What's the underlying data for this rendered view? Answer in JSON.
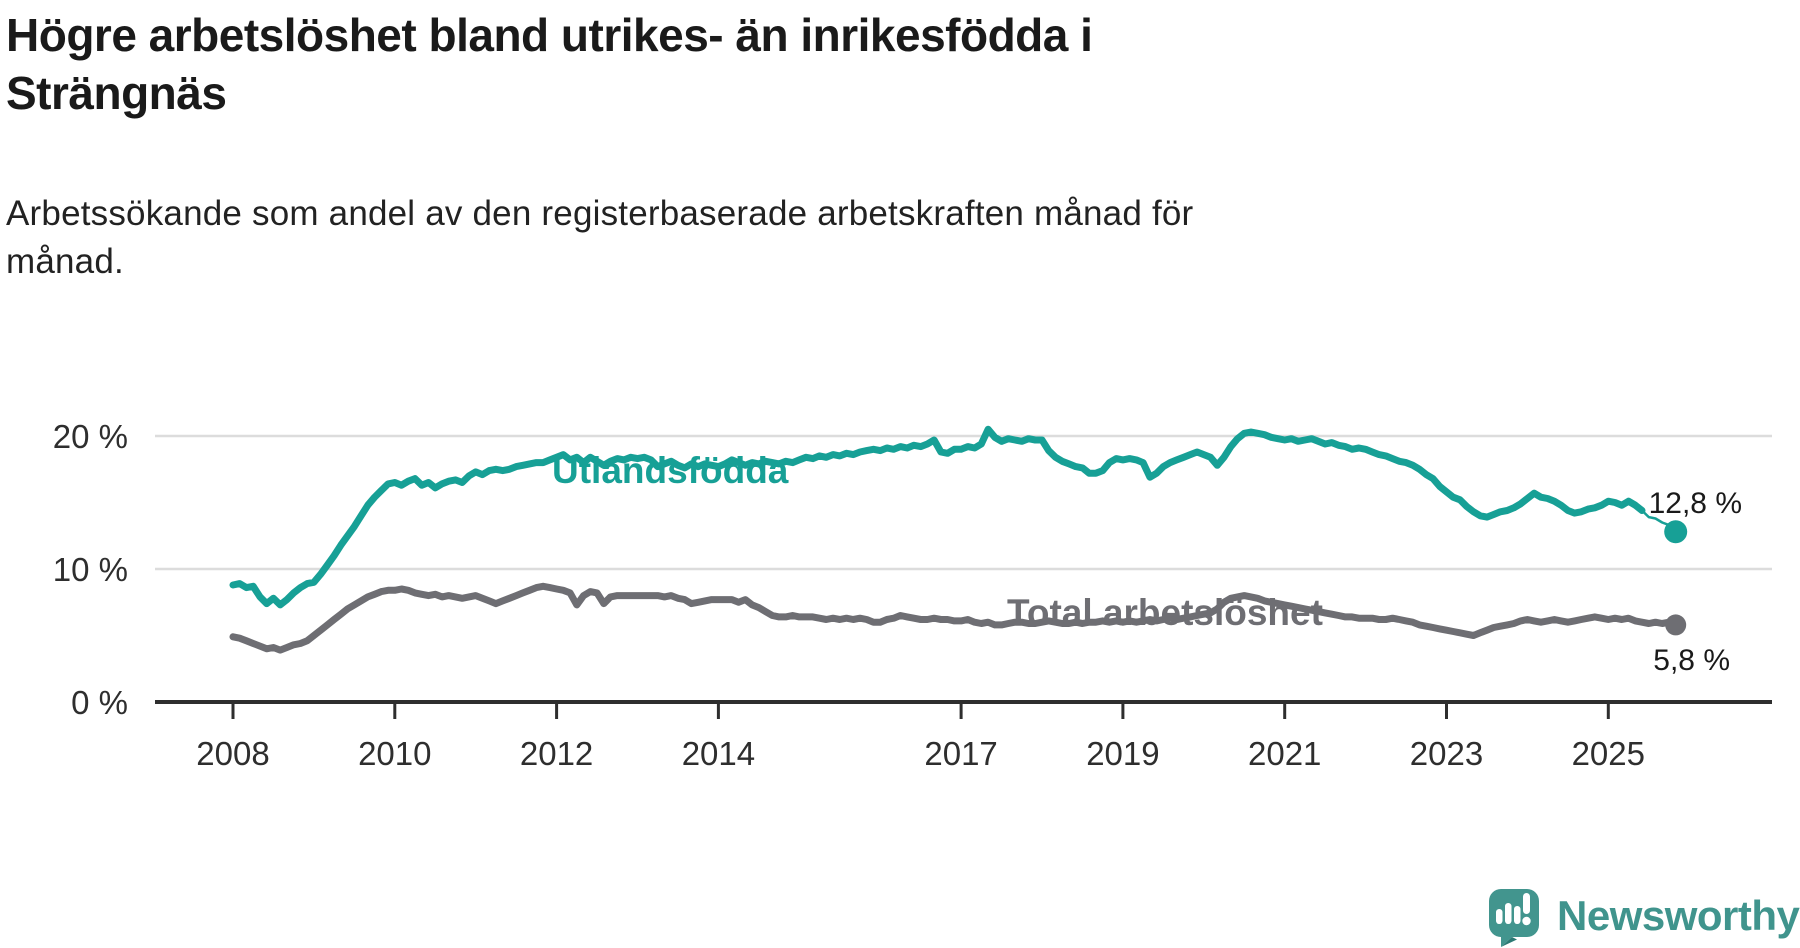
{
  "header": {
    "title": "Högre arbetslöshet bland utrikes- än inrikesfödda i\nSträngnäs",
    "subtitle": "Arbetssökande som andel av den registerbaserade arbetskraften månad för\nmånad."
  },
  "footer": {
    "brand": "Newsworthy",
    "brand_color": "#40948d",
    "logo_badge_color": "#42958e",
    "logo_badge_shade_color": "#2c7a74"
  },
  "palette": {
    "accent_teal": "#17a096",
    "series_gray": "#6e6e73",
    "gridline": "#dcdcdc",
    "axis": "#2e2e2e",
    "text_dark": "#1a1a1a"
  },
  "chart_data": {
    "type": "line",
    "title": "Högre arbetslöshet bland utrikes- än inrikesfödda i Strängnäs",
    "subtitle": "Arbetssökande som andel av den registerbaserade arbetskraften månad för månad.",
    "x_unit": "month",
    "x_start": "2008-01",
    "x_end": "2025-11",
    "ylim": [
      0,
      21.5
    ],
    "grid": "horizontal",
    "legend": "inline-labels",
    "x_ticks": [
      2008,
      2010,
      2012,
      2014,
      2017,
      2019,
      2021,
      2023,
      2025
    ],
    "y_ticks": [
      {
        "v": 0,
        "label": "0 %"
      },
      {
        "v": 10,
        "label": "10 %"
      },
      {
        "v": 20,
        "label": "20 %"
      }
    ],
    "series": [
      {
        "name": "utlandsfodda",
        "label": "Utlandsfödda",
        "color": "#17a096",
        "end_label": "12,8 %",
        "end_value": 12.8,
        "thin_from": 209,
        "values": [
          8.8,
          8.9,
          8.6,
          8.7,
          7.9,
          7.4,
          7.8,
          7.3,
          7.7,
          8.2,
          8.6,
          8.9,
          9.0,
          9.6,
          10.3,
          11.0,
          11.8,
          12.5,
          13.2,
          14.0,
          14.8,
          15.4,
          15.9,
          16.4,
          16.5,
          16.3,
          16.6,
          16.8,
          16.3,
          16.5,
          16.1,
          16.4,
          16.6,
          16.7,
          16.5,
          17.0,
          17.3,
          17.1,
          17.4,
          17.5,
          17.4,
          17.5,
          17.7,
          17.8,
          17.9,
          18.0,
          18.0,
          18.2,
          18.4,
          18.6,
          18.2,
          18.4,
          18.0,
          18.4,
          18.1,
          17.8,
          18.1,
          18.3,
          18.2,
          18.4,
          18.3,
          18.4,
          18.2,
          17.7,
          17.9,
          18.1,
          17.8,
          17.6,
          17.9,
          17.7,
          17.9,
          17.8,
          17.7,
          17.9,
          18.2,
          18.0,
          17.8,
          18.0,
          17.9,
          18.1,
          18.0,
          17.9,
          18.1,
          18.0,
          18.2,
          18.4,
          18.3,
          18.5,
          18.4,
          18.6,
          18.5,
          18.7,
          18.6,
          18.8,
          18.9,
          19.0,
          18.9,
          19.1,
          19.0,
          19.2,
          19.1,
          19.3,
          19.2,
          19.4,
          19.7,
          18.8,
          18.7,
          19.0,
          19.0,
          19.2,
          19.1,
          19.4,
          20.5,
          19.9,
          19.6,
          19.8,
          19.7,
          19.6,
          19.8,
          19.7,
          19.7,
          18.9,
          18.4,
          18.1,
          17.9,
          17.7,
          17.6,
          17.2,
          17.2,
          17.4,
          18.0,
          18.3,
          18.2,
          18.3,
          18.2,
          18.0,
          16.9,
          17.2,
          17.7,
          18.0,
          18.2,
          18.4,
          18.6,
          18.8,
          18.6,
          18.4,
          17.8,
          18.4,
          19.2,
          19.8,
          20.2,
          20.3,
          20.2,
          20.1,
          19.9,
          19.8,
          19.7,
          19.8,
          19.6,
          19.7,
          19.8,
          19.6,
          19.4,
          19.5,
          19.3,
          19.2,
          19.0,
          19.1,
          19.0,
          18.8,
          18.6,
          18.5,
          18.3,
          18.1,
          18.0,
          17.8,
          17.5,
          17.1,
          16.8,
          16.2,
          15.8,
          15.4,
          15.2,
          14.7,
          14.3,
          14.0,
          13.9,
          14.1,
          14.3,
          14.4,
          14.6,
          14.9,
          15.3,
          15.7,
          15.4,
          15.3,
          15.1,
          14.8,
          14.4,
          14.2,
          14.3,
          14.5,
          14.6,
          14.8,
          15.1,
          15.0,
          14.8,
          15.1,
          14.8,
          14.4,
          13.9,
          13.8,
          13.5,
          13.3,
          12.8
        ]
      },
      {
        "name": "total",
        "label": "Total arbetslöshet",
        "color": "#6e6e73",
        "end_label": "5,8 %",
        "end_value": 5.8,
        "values": [
          4.9,
          4.8,
          4.6,
          4.4,
          4.2,
          4.0,
          4.1,
          3.9,
          4.1,
          4.3,
          4.4,
          4.6,
          5.0,
          5.4,
          5.8,
          6.2,
          6.6,
          7.0,
          7.3,
          7.6,
          7.9,
          8.1,
          8.3,
          8.4,
          8.4,
          8.5,
          8.4,
          8.2,
          8.1,
          8.0,
          8.1,
          7.9,
          8.0,
          7.9,
          7.8,
          7.9,
          8.0,
          7.8,
          7.6,
          7.4,
          7.6,
          7.8,
          8.0,
          8.2,
          8.4,
          8.6,
          8.7,
          8.6,
          8.5,
          8.4,
          8.2,
          7.3,
          8.0,
          8.3,
          8.2,
          7.4,
          7.9,
          8.0,
          8.0,
          8.0,
          8.0,
          8.0,
          8.0,
          8.0,
          7.9,
          8.0,
          7.8,
          7.7,
          7.4,
          7.5,
          7.6,
          7.7,
          7.7,
          7.7,
          7.7,
          7.5,
          7.7,
          7.3,
          7.1,
          6.8,
          6.5,
          6.4,
          6.4,
          6.5,
          6.4,
          6.4,
          6.4,
          6.3,
          6.2,
          6.3,
          6.2,
          6.3,
          6.2,
          6.3,
          6.2,
          6.0,
          6.0,
          6.2,
          6.3,
          6.5,
          6.4,
          6.3,
          6.2,
          6.2,
          6.3,
          6.2,
          6.2,
          6.1,
          6.1,
          6.2,
          6.0,
          5.9,
          6.0,
          5.8,
          5.8,
          5.9,
          6.0,
          6.0,
          5.9,
          5.9,
          6.0,
          6.1,
          6.0,
          5.9,
          5.9,
          6.0,
          5.9,
          6.0,
          6.0,
          6.1,
          6.0,
          6.1,
          6.0,
          6.1,
          6.0,
          6.1,
          6.2,
          6.1,
          6.2,
          6.3,
          6.2,
          6.3,
          6.4,
          6.5,
          6.6,
          6.7,
          7.0,
          7.5,
          7.8,
          7.9,
          8.0,
          7.9,
          7.8,
          7.6,
          7.5,
          7.4,
          7.3,
          7.2,
          7.1,
          7.0,
          6.9,
          6.8,
          6.7,
          6.6,
          6.5,
          6.4,
          6.4,
          6.3,
          6.3,
          6.3,
          6.2,
          6.2,
          6.3,
          6.2,
          6.1,
          6.0,
          5.8,
          5.7,
          5.6,
          5.5,
          5.4,
          5.3,
          5.2,
          5.1,
          5.0,
          5.2,
          5.4,
          5.6,
          5.7,
          5.8,
          5.9,
          6.1,
          6.2,
          6.1,
          6.0,
          6.1,
          6.2,
          6.1,
          6.0,
          6.1,
          6.2,
          6.3,
          6.4,
          6.3,
          6.2,
          6.3,
          6.2,
          6.3,
          6.1,
          6.0,
          5.9,
          6.0,
          5.9,
          6.0,
          5.8
        ]
      }
    ]
  }
}
